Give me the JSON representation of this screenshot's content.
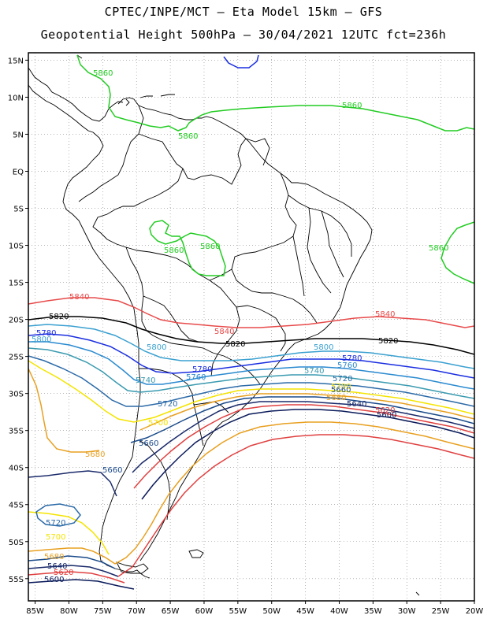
{
  "header": {
    "title_line1": "CPTEC/INPE/MCT –  Eta Model 15km – GFS",
    "title_line2": "Geopotential Height 500hPa – 30/04/2021 12UTC fct=236h"
  },
  "axes": {
    "lat_ticks": [
      "15N",
      "10N",
      "5N",
      "EQ",
      "5S",
      "10S",
      "15S",
      "20S",
      "25S",
      "30S",
      "35S",
      "40S",
      "45S",
      "50S",
      "55S"
    ],
    "lon_ticks": [
      "85W",
      "80W",
      "75W",
      "70W",
      "65W",
      "60W",
      "55W",
      "50W",
      "45W",
      "40W",
      "35W",
      "30W",
      "25W",
      "20W"
    ],
    "lat_range": [
      16,
      -58
    ],
    "lon_range": [
      -86,
      -20
    ],
    "grid": true
  },
  "colors": {
    "c5860": "#22cc22",
    "c5840": "#e84a4a",
    "c5820": "#000000",
    "c5800": "#3aa0d0",
    "c5780": "#1a2ee0",
    "c5760": "#2a8ad0",
    "c5740": "#3a9ab0",
    "c5720": "#2b6aa8",
    "c5700": "#f4e400",
    "c5680": "#e8a020",
    "c5660": "#1a4a8a",
    "c5640": "#1a2a6a",
    "c5620": "#e04040",
    "c5600": "#0a1a5a",
    "country": "#000000",
    "grid": "#888888"
  },
  "contour_labels": {
    "v5860": "5860",
    "v5840": "5840",
    "v5820": "5820",
    "v5800": "5800",
    "v5780": "5780",
    "v5760": "5760",
    "v5740": "5740",
    "v5720": "5720",
    "v5700": "5700",
    "v5680": "5680",
    "v5660": "5660",
    "v5640": "5640",
    "v5620": "5620",
    "v5600": "5600"
  }
}
